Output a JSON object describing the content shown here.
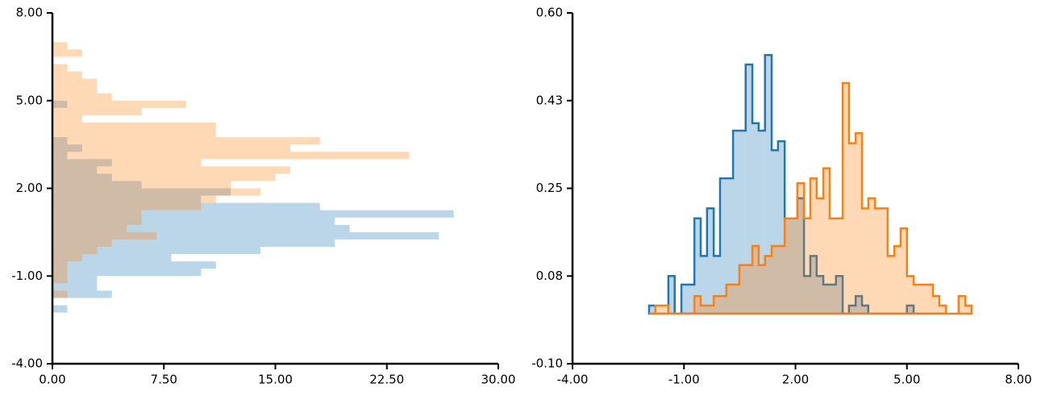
{
  "chart_data": [
    {
      "type": "histogram",
      "orientation": "horizontal",
      "histtype": "bar",
      "xlim": [
        0,
        30
      ],
      "xticks": [
        {
          "value": 0,
          "label": "0.00"
        },
        {
          "value": 7.5,
          "label": "7.50"
        },
        {
          "value": 15,
          "label": "15.00"
        },
        {
          "value": 22.5,
          "label": "22.50"
        },
        {
          "value": 30,
          "label": "30.00"
        }
      ],
      "ylim": [
        -4,
        8
      ],
      "yticks": [
        {
          "value": -4,
          "label": "-4.00"
        },
        {
          "value": -1,
          "label": "-1.00"
        },
        {
          "value": 2,
          "label": "2.00"
        },
        {
          "value": 5,
          "label": "5.00"
        },
        {
          "value": 8,
          "label": "8.00"
        }
      ],
      "series": [
        {
          "color": "#1f77b4",
          "bins": [
            -2.25,
            -2,
            -1.75,
            -1.5,
            -1.25,
            -1,
            -0.75,
            -0.5,
            -0.25,
            0,
            0.25,
            0.5,
            0.75,
            1,
            1.25,
            1.5,
            1.75,
            2,
            2.25,
            2.5,
            2.75,
            3,
            3.25,
            3.5,
            3.75,
            4,
            4.25,
            4.5,
            4.75,
            5
          ],
          "values": [
            1,
            0,
            4,
            3,
            3,
            10,
            11,
            8,
            14,
            19,
            26,
            20,
            19,
            27,
            18,
            10,
            12,
            6,
            4,
            3,
            4,
            1,
            2,
            1,
            0,
            0,
            0,
            0,
            1
          ]
        },
        {
          "color": "#ff7f0e",
          "bins": [
            -1.75,
            -1.5,
            -1.25,
            -1,
            -0.75,
            -0.5,
            -0.25,
            0,
            0.25,
            0.5,
            0.75,
            1,
            1.25,
            1.5,
            1.75,
            2,
            2.25,
            2.5,
            2.75,
            3,
            3.25,
            3.5,
            3.75,
            4,
            4.25,
            4.5,
            4.75,
            5,
            5.25,
            5.5,
            5.75,
            6,
            6.25,
            6.5,
            6.75,
            7
          ],
          "values": [
            1,
            0,
            1,
            1,
            1,
            2,
            3,
            4,
            7,
            5,
            6,
            6,
            10,
            11,
            14,
            12,
            15,
            16,
            10,
            24,
            16,
            18,
            11,
            11,
            2,
            6,
            9,
            4,
            3,
            3,
            2,
            1,
            0,
            2,
            1
          ]
        }
      ]
    },
    {
      "type": "histogram",
      "orientation": "vertical",
      "histtype": "step",
      "xlim": [
        -4,
        8
      ],
      "xticks": [
        {
          "value": -4,
          "label": "-4.00"
        },
        {
          "value": -1,
          "label": "-1.00"
        },
        {
          "value": 2,
          "label": "2.00"
        },
        {
          "value": 5,
          "label": "5.00"
        },
        {
          "value": 8,
          "label": "8.00"
        }
      ],
      "ylim": [
        -0.1,
        0.6
      ],
      "yticks": [
        {
          "value": -0.1,
          "label": "-0.10"
        },
        {
          "value": 0.075,
          "label": "0.08"
        },
        {
          "value": 0.25,
          "label": "0.25"
        },
        {
          "value": 0.425,
          "label": "0.43"
        },
        {
          "value": 0.6,
          "label": "0.60"
        }
      ],
      "series": [
        {
          "color": "#1f77b4",
          "bins": [
            -1.94,
            -1.77,
            -1.59,
            -1.42,
            -1.25,
            -1.07,
            -0.9,
            -0.72,
            -0.55,
            -0.38,
            -0.2,
            -0.03,
            0.14,
            0.32,
            0.49,
            0.66,
            0.84,
            1.01,
            1.18,
            1.36,
            1.53,
            1.71,
            1.88,
            2.05,
            2.23,
            2.4,
            2.57,
            2.75,
            2.92,
            3.09,
            3.27,
            3.44,
            3.62,
            3.79,
            3.96,
            4.14,
            4.31,
            4.48,
            4.66,
            4.83,
            5,
            5.18,
            5.35,
            5.53,
            5.7,
            5.87,
            6.05
          ],
          "values": [
            0.016,
            0,
            0,
            0.075,
            0,
            0.058,
            0.058,
            0.19,
            0.115,
            0.21,
            0.115,
            0.27,
            0.27,
            0.365,
            0.365,
            0.497,
            0.38,
            0.365,
            0.516,
            0.326,
            0.344,
            0.19,
            0.19,
            0.23,
            0.075,
            0.115,
            0.075,
            0.058,
            0.058,
            0.075,
            0,
            0.016,
            0.035,
            0.016,
            0,
            0,
            0,
            0,
            0,
            0,
            0.016,
            0,
            0,
            0,
            0,
            0
          ]
        },
        {
          "color": "#ff7f0e",
          "bins": [
            -1.94,
            -1.77,
            -1.59,
            -1.42,
            -1.25,
            -1.07,
            -0.9,
            -0.72,
            -0.55,
            -0.38,
            -0.2,
            -0.03,
            0.14,
            0.32,
            0.49,
            0.66,
            0.84,
            1.01,
            1.18,
            1.36,
            1.53,
            1.71,
            1.88,
            2.05,
            2.23,
            2.4,
            2.57,
            2.75,
            2.92,
            3.09,
            3.27,
            3.44,
            3.62,
            3.79,
            3.96,
            4.14,
            4.31,
            4.48,
            4.66,
            4.83,
            5,
            5.18,
            5.35,
            5.53,
            5.7,
            5.87,
            6.05,
            6.22,
            6.39,
            6.57,
            6.74
          ],
          "values": [
            0,
            0.016,
            0.016,
            0,
            0,
            0,
            0,
            0.035,
            0.016,
            0.016,
            0.035,
            0.035,
            0.058,
            0.058,
            0.097,
            0.097,
            0.135,
            0.097,
            0.115,
            0.135,
            0.135,
            0.19,
            0.19,
            0.26,
            0.19,
            0.27,
            0.23,
            0.29,
            0.19,
            0.19,
            0.46,
            0.34,
            0.36,
            0.21,
            0.23,
            0.21,
            0.21,
            0.115,
            0.135,
            0.17,
            0.075,
            0.058,
            0.058,
            0.058,
            0.035,
            0.016,
            0,
            0,
            0.035,
            0.016
          ]
        }
      ]
    }
  ]
}
